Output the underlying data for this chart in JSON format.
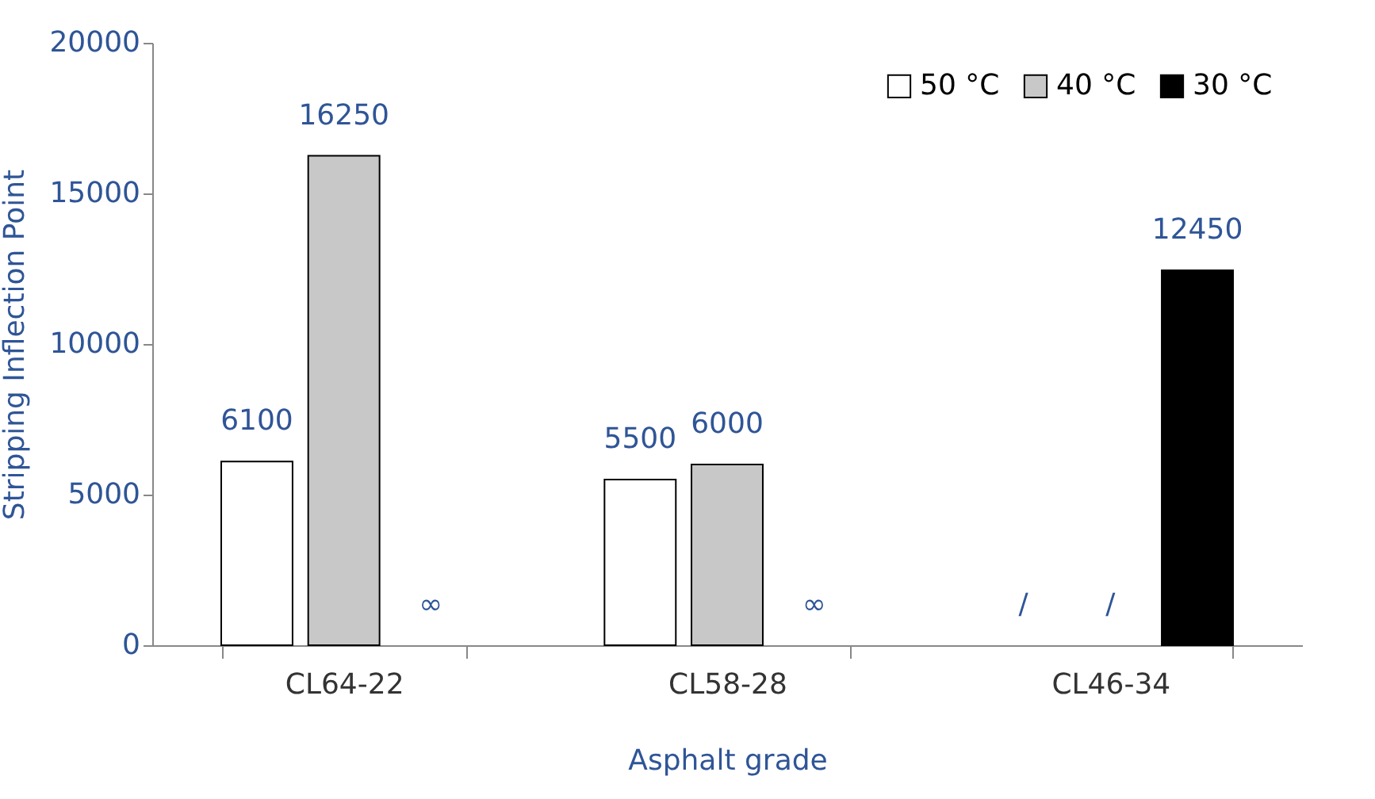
{
  "chart_data": {
    "type": "bar",
    "xlabel": "Asphalt grade",
    "ylabel": "Stripping Inflection Point",
    "categories": [
      "CL64-22",
      "CL58-28",
      "CL46-34"
    ],
    "series": [
      {
        "name": "50 °C",
        "color": "#ffffff",
        "values": [
          6100,
          5500,
          null
        ],
        "value_labels": [
          "6100",
          "5500",
          "/"
        ]
      },
      {
        "name": "40 °C",
        "color": "#c8c8c8",
        "values": [
          16250,
          6000,
          null
        ],
        "value_labels": [
          "16250",
          "6000",
          "/"
        ]
      },
      {
        "name": "30 °C",
        "color": "#000000",
        "values": [
          null,
          null,
          12450
        ],
        "value_labels": [
          "∞",
          "∞",
          "12450"
        ]
      }
    ],
    "ylim": [
      0,
      20000
    ],
    "yticks": [
      0,
      5000,
      10000,
      15000,
      20000
    ],
    "grid": false,
    "legend": "top right"
  }
}
